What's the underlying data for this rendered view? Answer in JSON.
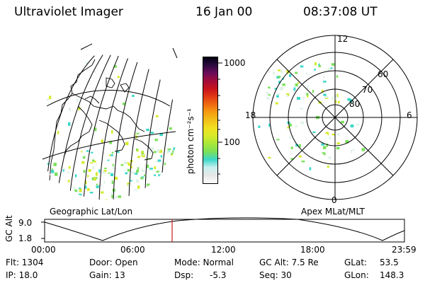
{
  "header": {
    "instrument": "Ultraviolet Imager",
    "date": "16 Jan 00",
    "time": "08:37:08 UT"
  },
  "colorbar": {
    "unit_label": "photon cm⁻²s⁻¹",
    "tick_labels": [
      "1000",
      "100"
    ],
    "colors": [
      "#ffffff",
      "#e6e6e6",
      "#c8f0f0",
      "#3ad7c8",
      "#7be05a",
      "#a7e83a",
      "#d6ea2a",
      "#f0e020",
      "#f2c01a",
      "#f59d10",
      "#ef6a10",
      "#e03a14",
      "#c8141c",
      "#a00c3a",
      "#6a0c5a",
      "#2a0a3e",
      "#000010"
    ]
  },
  "geo_panel": {
    "label": "Geographic Lat/Lon"
  },
  "polar_panel": {
    "label": "Apex MLat/MLT",
    "mlt_labels": {
      "top": "12",
      "left": "18",
      "right": "6",
      "bottom": "0"
    },
    "lat_labels": [
      "60",
      "70",
      "80"
    ]
  },
  "altitude_plot": {
    "y_axis_label": "GC Alt",
    "y_ticks": [
      "9.0",
      "1.8"
    ],
    "x_ticks": [
      "00:00",
      "06:00",
      "12:00",
      "18:00",
      "23:59"
    ],
    "current_time_marker": "08:37"
  },
  "info": {
    "flt": "Flt: 1304",
    "ip": "IP: 18.0",
    "door": "Door: Open",
    "gain": "Gain: 13",
    "mode": "Mode: Normal",
    "dsp_label": "Dsp:",
    "dsp_value": "-5.3",
    "gcalt": "GC Alt: 7.5 Re",
    "seq": "Seq: 30",
    "glat_label": "GLat:",
    "glat_value": "53.5",
    "glon_label": "GLon:",
    "glon_value": "148.3"
  },
  "colors": {
    "marker_line": "#c81e1e",
    "aurora_green": "#7be05a",
    "aurora_cyan": "#3ad7c8",
    "aurora_yellow": "#d6ea2a"
  }
}
